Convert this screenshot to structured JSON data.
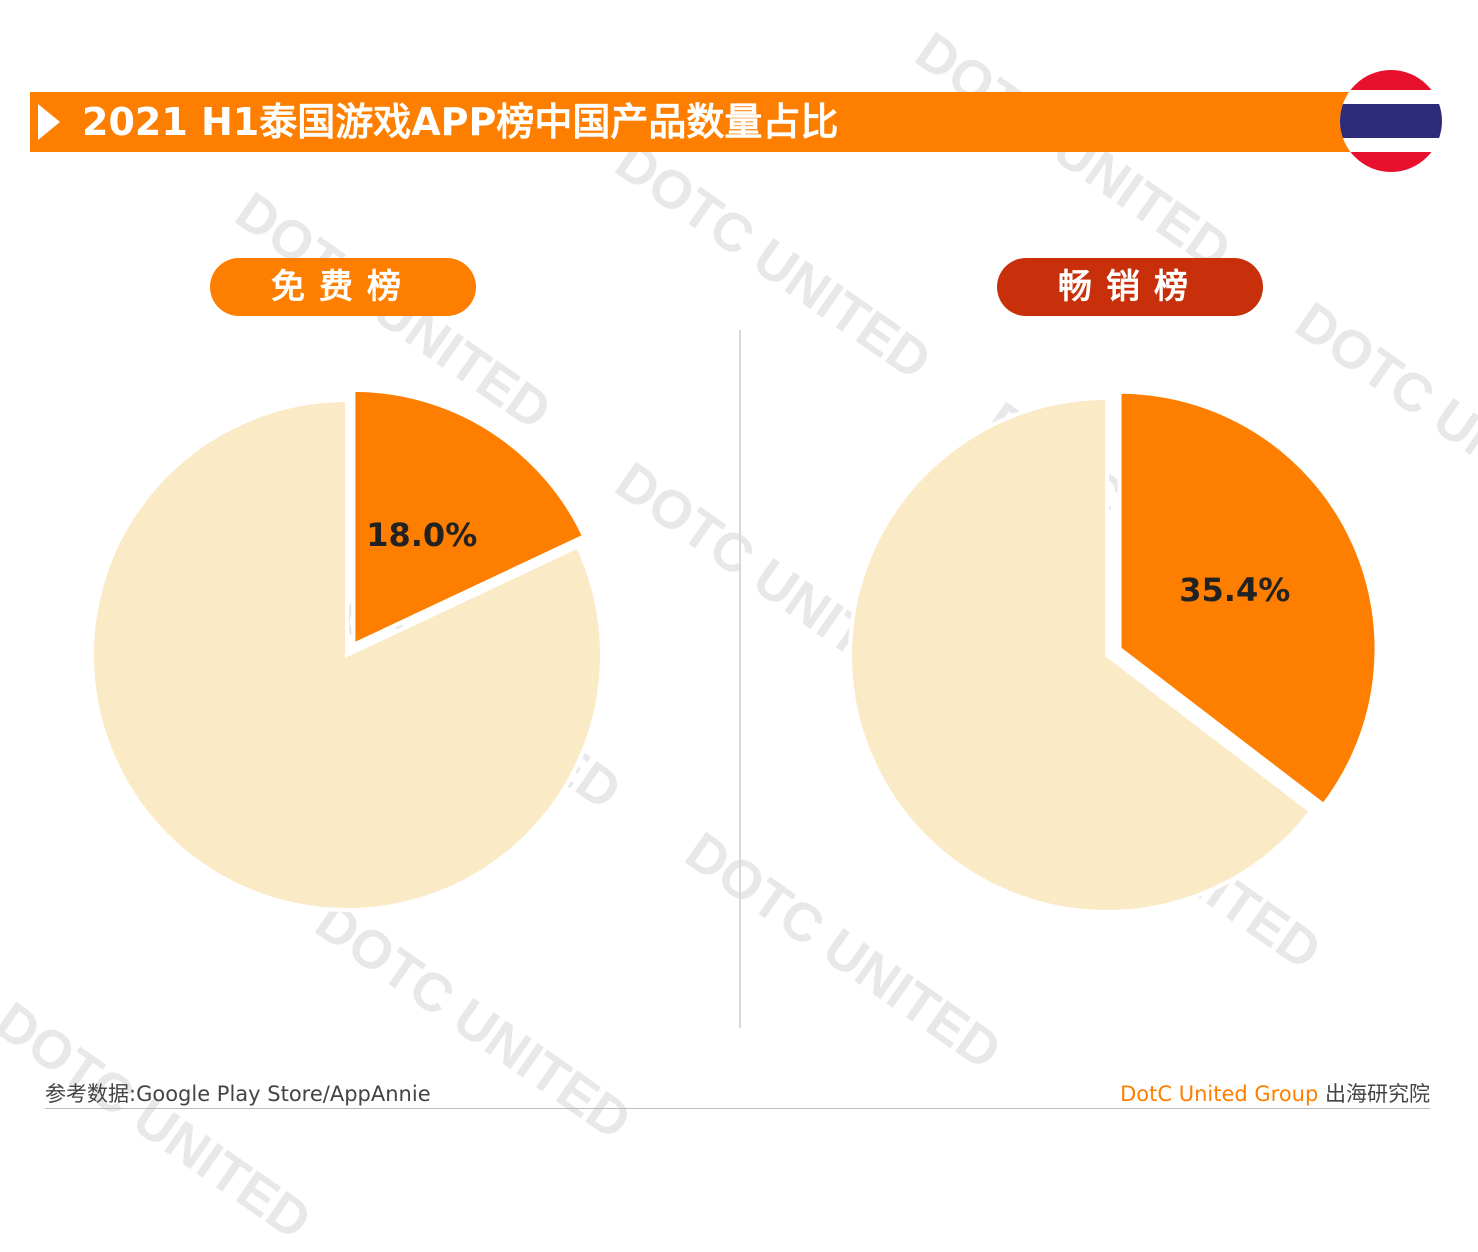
{
  "title": "2021 H1泰国游戏APP榜中国产品数量占比",
  "flag_icon": "thailand-flag-icon",
  "colors": {
    "accent": "#fe7f00",
    "grossing_pill": "#c8300c",
    "pie_highlight": "#fe7f00",
    "pie_rest": "#faeac6",
    "label_text": "#222222"
  },
  "footer": {
    "source": "参考数据:Google Play Store/AppAnnie",
    "brand_en": "DotC United Group",
    "brand_cn": "出海研究院"
  },
  "watermark": "DOTC UNITED",
  "chart_data": [
    {
      "type": "pie",
      "title": "免费榜",
      "slices": [
        {
          "value": 18.0,
          "label": "18.0%",
          "color": "#fe7f00",
          "exploded": true
        },
        {
          "value": 82.0,
          "label": "",
          "color": "#faeac6"
        }
      ]
    },
    {
      "type": "pie",
      "title": "畅销榜",
      "slices": [
        {
          "value": 35.4,
          "label": "35.4%",
          "color": "#fe7f00",
          "exploded": true
        },
        {
          "value": 64.6,
          "label": "",
          "color": "#faeac6"
        }
      ]
    }
  ]
}
